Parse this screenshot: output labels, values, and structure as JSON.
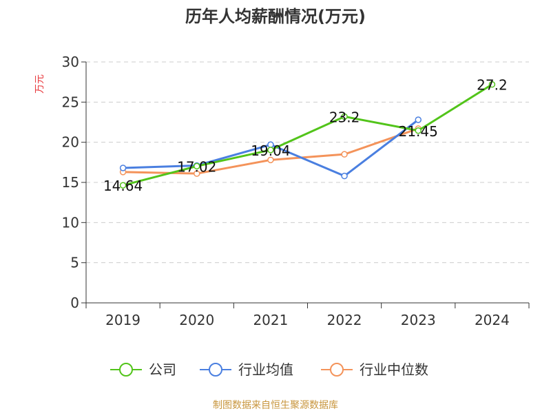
{
  "chart_data": {
    "type": "line",
    "title": "历年人均薪酬情况(万元)",
    "ylabel": "万元",
    "xlabel": "",
    "categories": [
      "2019",
      "2020",
      "2021",
      "2022",
      "2023",
      "2024"
    ],
    "ylim": [
      0,
      30
    ],
    "yticks": [
      0,
      5,
      10,
      15,
      20,
      25,
      30
    ],
    "grid": true,
    "legend_position": "bottom",
    "series": [
      {
        "name": "公司",
        "color": "#52c41a",
        "values": [
          14.64,
          17.02,
          19.04,
          23.2,
          21.45,
          27.2
        ],
        "labels": [
          "14.64",
          "17.02",
          "19.04",
          "23.2",
          "21.45",
          "27.2"
        ]
      },
      {
        "name": "行业均值",
        "color": "#4a7fe0",
        "values": [
          16.8,
          17.1,
          19.7,
          15.8,
          22.8,
          null
        ]
      },
      {
        "name": "行业中位数",
        "color": "#f4935a",
        "values": [
          16.3,
          16.1,
          17.8,
          18.5,
          21.7,
          null
        ]
      }
    ]
  },
  "source": "制图数据来自恒生聚源数据库"
}
